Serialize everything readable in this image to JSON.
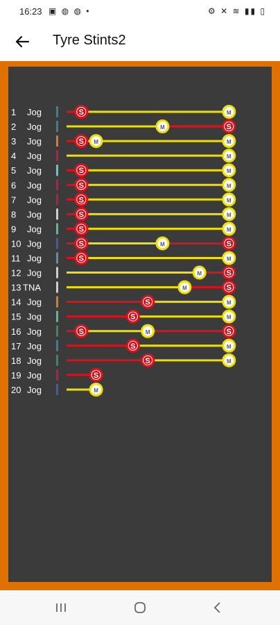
{
  "status_bar": {
    "time": "16:23",
    "left_icons": "▣ ◍ ◍ •",
    "right_icons": "⚙ ✕ ≋ ▮▮ ▯"
  },
  "app_bar": {
    "title": "Tyre Stints2"
  },
  "colors": {
    "soft": "#e0101a",
    "medium": "#f0e000",
    "frame": "#e07000",
    "panel": "#3b3b3b"
  },
  "drivers": [
    {
      "pos": "1",
      "name": "Jog",
      "color": "#3a7fa0",
      "stints": [
        {
          "compound": "S",
          "end": 1
        },
        {
          "compound": "M",
          "end": 11
        }
      ]
    },
    {
      "pos": "2",
      "name": "Jog",
      "color": "#3a7fa0",
      "stints": [
        {
          "compound": "M",
          "end": 6.5
        },
        {
          "compound": "S",
          "end": 11
        }
      ]
    },
    {
      "pos": "3",
      "name": "Jog",
      "color": "#e07a1a",
      "stints": [
        {
          "compound": "S",
          "end": 1
        },
        {
          "compound": "M",
          "end": 2
        },
        {
          "compound": "M",
          "end": 11
        }
      ]
    },
    {
      "pos": "4",
      "name": "Jog",
      "color": "#c01b3c",
      "stints": [
        {
          "compound": "M",
          "end": 11
        }
      ]
    },
    {
      "pos": "5",
      "name": "Jog",
      "color": "#5fc8d0",
      "stints": [
        {
          "compound": "S",
          "end": 1
        },
        {
          "compound": "M",
          "end": 11
        }
      ]
    },
    {
      "pos": "6",
      "name": "Jog",
      "color": "#c01b3c",
      "stints": [
        {
          "compound": "S",
          "end": 1
        },
        {
          "compound": "M",
          "end": 11
        }
      ]
    },
    {
      "pos": "7",
      "name": "Jog",
      "color": "#c01b3c",
      "stints": [
        {
          "compound": "S",
          "end": 1
        },
        {
          "compound": "M",
          "end": 11
        }
      ]
    },
    {
      "pos": "8",
      "name": "Jog",
      "color": "#cfcfcf",
      "stints": [
        {
          "compound": "S",
          "end": 1
        },
        {
          "compound": "M",
          "end": 11
        }
      ]
    },
    {
      "pos": "9",
      "name": "Jog",
      "color": "#4fbf9f",
      "stints": [
        {
          "compound": "S",
          "end": 1
        },
        {
          "compound": "M",
          "end": 11
        }
      ]
    },
    {
      "pos": "10",
      "name": "Jog",
      "color": "#3a5fb0",
      "stints": [
        {
          "compound": "S",
          "end": 1
        },
        {
          "compound": "M",
          "end": 6.5
        },
        {
          "compound": "S",
          "end": 11
        }
      ]
    },
    {
      "pos": "11",
      "name": "Jog",
      "color": "#5a8fb0",
      "stints": [
        {
          "compound": "S",
          "end": 1
        },
        {
          "compound": "M",
          "end": 11
        }
      ]
    },
    {
      "pos": "12",
      "name": "Jog",
      "color": "#cfcfcf",
      "stints": [
        {
          "compound": "M",
          "end": 9
        },
        {
          "compound": "S",
          "end": 11
        }
      ]
    },
    {
      "pos": "13",
      "name": "TNA",
      "color": "#cfcfcf",
      "stints": [
        {
          "compound": "M",
          "end": 8
        },
        {
          "compound": "S",
          "end": 11
        }
      ]
    },
    {
      "pos": "14",
      "name": "Jog",
      "color": "#e07a1a",
      "stints": [
        {
          "compound": "S",
          "end": 5.5
        },
        {
          "compound": "M",
          "end": 11
        }
      ]
    },
    {
      "pos": "15",
      "name": "Jog",
      "color": "#4fbf9f",
      "stints": [
        {
          "compound": "S",
          "end": 4.5
        },
        {
          "compound": "M",
          "end": 11
        }
      ]
    },
    {
      "pos": "16",
      "name": "Jog",
      "color": "#2f8f5f",
      "stints": [
        {
          "compound": "S",
          "end": 1
        },
        {
          "compound": "M",
          "end": 5.5
        },
        {
          "compound": "S",
          "end": 11
        }
      ]
    },
    {
      "pos": "17",
      "name": "Jog",
      "color": "#3a7fa0",
      "stints": [
        {
          "compound": "S",
          "end": 4.5
        },
        {
          "compound": "M",
          "end": 11
        }
      ]
    },
    {
      "pos": "18",
      "name": "Jog",
      "color": "#2f8f5f",
      "stints": [
        {
          "compound": "S",
          "end": 5.5
        },
        {
          "compound": "M",
          "end": 11
        }
      ]
    },
    {
      "pos": "19",
      "name": "Jog",
      "color": "#c01b3c",
      "stints": [
        {
          "compound": "S",
          "end": 2
        }
      ]
    },
    {
      "pos": "20",
      "name": "Jog",
      "color": "#3a5fb0",
      "stints": [
        {
          "compound": "M",
          "end": 2
        }
      ]
    }
  ]
}
